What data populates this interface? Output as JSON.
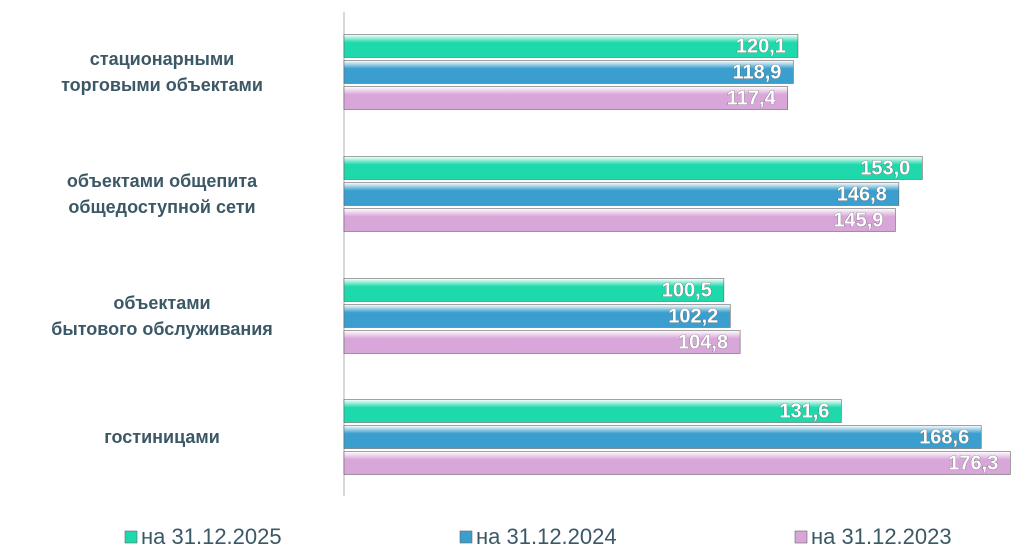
{
  "chart_data": {
    "type": "barh",
    "categories": [
      "стационарными\nторговыми объектами",
      "объектами общепита\nобщедоступной сети",
      "объектами\nбытового обслуживания",
      "гостиницами"
    ],
    "series": [
      {
        "name": "на 31.12.2025",
        "color": "#1ed9ab",
        "values": [
          120.1,
          153.0,
          100.5,
          131.6
        ],
        "value_labels": [
          "120,1",
          "153,0",
          "100,5",
          "131,6"
        ]
      },
      {
        "name": "на 31.12.2024",
        "color": "#3a9fce",
        "values": [
          118.9,
          146.8,
          102.2,
          168.6
        ],
        "value_labels": [
          "118,9",
          "146,8",
          "102,2",
          "168,6"
        ]
      },
      {
        "name": "на 31.12.2023",
        "color": "#d9a6d9",
        "values": [
          117.4,
          145.9,
          104.8,
          176.3
        ],
        "value_labels": [
          "117,4",
          "145,9",
          "104,8",
          "176,3"
        ]
      }
    ],
    "xlim": [
      0,
      177
    ],
    "legend": "bottom"
  }
}
